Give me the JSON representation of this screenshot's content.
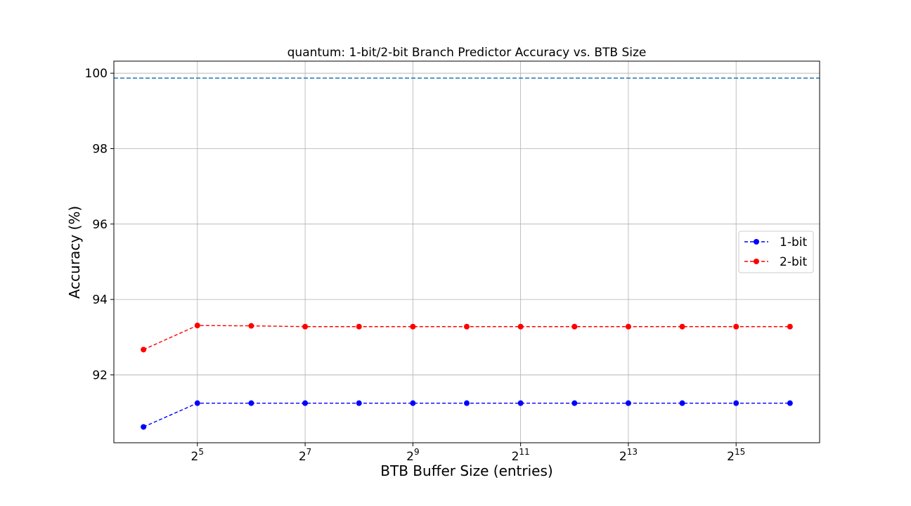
{
  "chart_data": {
    "type": "line",
    "title": "quantum: 1-bit/2-bit Branch Predictor Accuracy vs. BTB Size",
    "xlabel": "BTB Buffer Size (entries)",
    "ylabel": "Accuracy (%)",
    "x_scale": "log2",
    "x": [
      16,
      32,
      64,
      128,
      256,
      512,
      1024,
      2048,
      4096,
      8192,
      16384,
      32768,
      65536
    ],
    "x_ticks": [
      {
        "base": "2",
        "exp": "5",
        "value": 32
      },
      {
        "base": "2",
        "exp": "7",
        "value": 128
      },
      {
        "base": "2",
        "exp": "9",
        "value": 512
      },
      {
        "base": "2",
        "exp": "11",
        "value": 2048
      },
      {
        "base": "2",
        "exp": "13",
        "value": 8192
      },
      {
        "base": "2",
        "exp": "15",
        "value": 32768
      }
    ],
    "y_ticks": [
      "92",
      "94",
      "96",
      "98",
      "100"
    ],
    "ylim": [
      90.2,
      100.32
    ],
    "grid": true,
    "legend_position": "center-right",
    "series": [
      {
        "name": "1-bit",
        "color": "#0000ff",
        "values": [
          90.62,
          91.25,
          91.25,
          91.25,
          91.25,
          91.25,
          91.25,
          91.25,
          91.25,
          91.25,
          91.25,
          91.25,
          91.25
        ]
      },
      {
        "name": "2-bit",
        "color": "#ff0000",
        "values": [
          92.67,
          93.31,
          93.3,
          93.28,
          93.28,
          93.28,
          93.28,
          93.28,
          93.28,
          93.28,
          93.28,
          93.28,
          93.28
        ]
      }
    ],
    "reference_line": {
      "y": 99.87,
      "color": "#1f77b4",
      "style": "dashed"
    }
  }
}
